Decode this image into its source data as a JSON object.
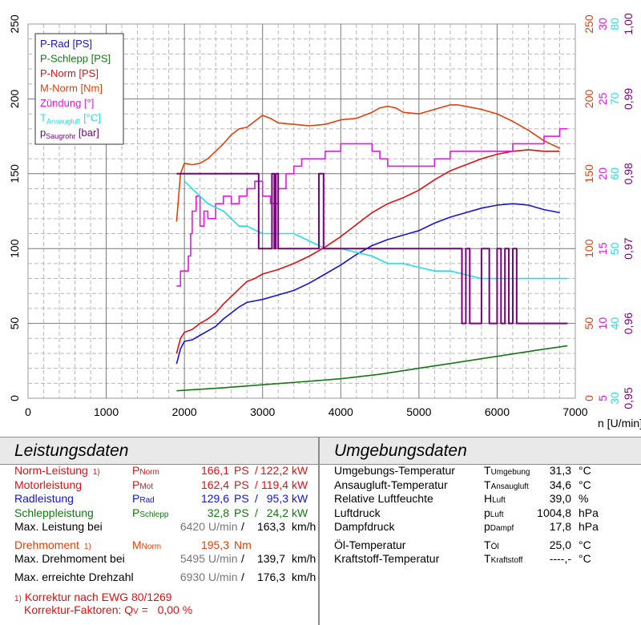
{
  "colors": {
    "p_rad": "#1414d2",
    "p_schlepp": "#137813",
    "p_norm": "#e01010",
    "m_norm": "#e0400a",
    "zuendung": "#e018e0",
    "t_ansaug": "#20e0e0",
    "p_saug": "#780078"
  },
  "chart_data": {
    "type": "line",
    "xlabel": "n [U/min]",
    "xlim": [
      0,
      7000
    ],
    "x_ticks": [
      "0",
      "1000",
      "2000",
      "3000",
      "4000",
      "5000",
      "6000",
      "7000"
    ],
    "axes": {
      "left_ps": {
        "ticks": [
          "0",
          "50",
          "100",
          "150",
          "200",
          "250"
        ],
        "ylim": [
          0,
          250
        ]
      },
      "right_nm": {
        "ticks": [
          "0",
          "50",
          "100",
          "150",
          "200",
          "250"
        ],
        "ylim": [
          0,
          250
        ]
      },
      "right_deg": {
        "ticks": [
          "5",
          "10",
          "15",
          "20",
          "25",
          "30"
        ],
        "ylim": [
          5,
          30
        ]
      },
      "right_c": {
        "ticks": [
          "30",
          "40",
          "50",
          "60",
          "70",
          "80"
        ],
        "ylim": [
          30,
          80
        ]
      },
      "right_bar": {
        "ticks": [
          "0,95",
          "0,96",
          "0,97",
          "0,98",
          "0,99",
          "1,00"
        ],
        "ylim": [
          0.95,
          1.0
        ]
      }
    },
    "legend": [
      "P-Rad [PS]",
      "P-Schlepp [PS]",
      "P-Norm [PS]",
      "M-Norm [Nm]",
      "Zündung [°]",
      "T|Ansaugluft| [°C]",
      "p|Saugrohr| [bar]"
    ],
    "series": [
      {
        "name": "P-Rad [PS]",
        "axis": "left_ps",
        "color": "p_rad",
        "points": [
          [
            1900,
            23
          ],
          [
            1950,
            33
          ],
          [
            2000,
            38
          ],
          [
            2100,
            39
          ],
          [
            2200,
            42
          ],
          [
            2300,
            45
          ],
          [
            2400,
            48
          ],
          [
            2500,
            53
          ],
          [
            2600,
            57
          ],
          [
            2700,
            61
          ],
          [
            2800,
            64
          ],
          [
            3000,
            66
          ],
          [
            3200,
            69
          ],
          [
            3400,
            72
          ],
          [
            3600,
            77
          ],
          [
            3800,
            83
          ],
          [
            4000,
            89
          ],
          [
            4200,
            96
          ],
          [
            4400,
            102
          ],
          [
            4600,
            106
          ],
          [
            4800,
            109
          ],
          [
            5000,
            112
          ],
          [
            5200,
            117
          ],
          [
            5400,
            121
          ],
          [
            5600,
            124
          ],
          [
            5800,
            127
          ],
          [
            6000,
            129
          ],
          [
            6200,
            130
          ],
          [
            6400,
            129
          ],
          [
            6600,
            126
          ],
          [
            6800,
            124
          ]
        ]
      },
      {
        "name": "P-Schlepp [PS]",
        "axis": "left_ps",
        "color": "p_schlepp",
        "points": [
          [
            1900,
            5
          ],
          [
            2500,
            7
          ],
          [
            3000,
            9
          ],
          [
            3500,
            11
          ],
          [
            4000,
            13
          ],
          [
            4500,
            16
          ],
          [
            5000,
            20
          ],
          [
            5500,
            24
          ],
          [
            6000,
            28
          ],
          [
            6500,
            32
          ],
          [
            6900,
            35
          ]
        ]
      },
      {
        "name": "P-Norm [PS]",
        "axis": "left_ps",
        "color": "p_norm",
        "points": [
          [
            1900,
            30
          ],
          [
            1950,
            40
          ],
          [
            2000,
            44
          ],
          [
            2100,
            46
          ],
          [
            2200,
            50
          ],
          [
            2300,
            53
          ],
          [
            2400,
            57
          ],
          [
            2500,
            63
          ],
          [
            2600,
            68
          ],
          [
            2700,
            73
          ],
          [
            2800,
            78
          ],
          [
            2900,
            80
          ],
          [
            3000,
            83
          ],
          [
            3200,
            86
          ],
          [
            3400,
            90
          ],
          [
            3600,
            95
          ],
          [
            3800,
            101
          ],
          [
            4000,
            108
          ],
          [
            4200,
            116
          ],
          [
            4400,
            124
          ],
          [
            4600,
            130
          ],
          [
            4800,
            134
          ],
          [
            5000,
            139
          ],
          [
            5200,
            146
          ],
          [
            5400,
            152
          ],
          [
            5600,
            156
          ],
          [
            5800,
            160
          ],
          [
            6000,
            163
          ],
          [
            6200,
            165
          ],
          [
            6400,
            166
          ],
          [
            6600,
            165
          ],
          [
            6800,
            165
          ]
        ]
      },
      {
        "name": "M-Norm [Nm]",
        "axis": "right_nm",
        "color": "m_norm",
        "points": [
          [
            1900,
            118
          ],
          [
            1950,
            150
          ],
          [
            2000,
            157
          ],
          [
            2100,
            156
          ],
          [
            2200,
            157
          ],
          [
            2300,
            160
          ],
          [
            2500,
            170
          ],
          [
            2600,
            176
          ],
          [
            2700,
            180
          ],
          [
            2800,
            181
          ],
          [
            2900,
            185
          ],
          [
            3000,
            189
          ],
          [
            3100,
            187
          ],
          [
            3200,
            184
          ],
          [
            3400,
            183
          ],
          [
            3600,
            182
          ],
          [
            3800,
            183
          ],
          [
            4000,
            186
          ],
          [
            4200,
            187
          ],
          [
            4400,
            191
          ],
          [
            4500,
            194
          ],
          [
            4600,
            195
          ],
          [
            4700,
            194
          ],
          [
            4800,
            191
          ],
          [
            5000,
            190
          ],
          [
            5200,
            193
          ],
          [
            5400,
            196
          ],
          [
            5500,
            196
          ],
          [
            5600,
            195
          ],
          [
            5800,
            193
          ],
          [
            6000,
            190
          ],
          [
            6200,
            185
          ],
          [
            6400,
            179
          ],
          [
            6600,
            172
          ],
          [
            6800,
            167
          ]
        ]
      },
      {
        "name": "Zündung [°]",
        "axis": "right_deg",
        "color": "zuendung",
        "points": [
          [
            1900,
            12.5
          ],
          [
            1950,
            13.5
          ],
          [
            2000,
            13.5
          ],
          [
            2050,
            14.5
          ],
          [
            2080,
            16
          ],
          [
            2100,
            17.5
          ],
          [
            2150,
            18.5
          ],
          [
            2200,
            16.5
          ],
          [
            2250,
            17.5
          ],
          [
            2300,
            17
          ],
          [
            2400,
            18
          ],
          [
            2500,
            18.5
          ],
          [
            2600,
            18
          ],
          [
            2700,
            18.5
          ],
          [
            2800,
            19
          ],
          [
            2900,
            19.5
          ],
          [
            3000,
            18.5
          ],
          [
            3100,
            18
          ],
          [
            3200,
            19
          ],
          [
            3300,
            20
          ],
          [
            3400,
            20.5
          ],
          [
            3500,
            21
          ],
          [
            3600,
            21
          ],
          [
            3800,
            21.5
          ],
          [
            3900,
            21.5
          ],
          [
            4000,
            22
          ],
          [
            4200,
            22
          ],
          [
            4400,
            21.5
          ],
          [
            4500,
            21
          ],
          [
            4600,
            20.5
          ],
          [
            4800,
            20.5
          ],
          [
            5000,
            20.5
          ],
          [
            5200,
            21
          ],
          [
            5400,
            21.5
          ],
          [
            5600,
            21.5
          ],
          [
            5800,
            21.5
          ],
          [
            6000,
            21.5
          ],
          [
            6200,
            22
          ],
          [
            6400,
            22
          ],
          [
            6600,
            22.5
          ],
          [
            6800,
            23
          ],
          [
            6900,
            23
          ]
        ]
      },
      {
        "name": "T|Ansaugluft| [°C]",
        "axis": "right_c",
        "color": "t_ansaug",
        "points": [
          [
            2000,
            59
          ],
          [
            2100,
            58
          ],
          [
            2200,
            57
          ],
          [
            2300,
            56
          ],
          [
            2400,
            55.5
          ],
          [
            2500,
            55
          ],
          [
            2600,
            54
          ],
          [
            2700,
            53
          ],
          [
            2800,
            53
          ],
          [
            3000,
            52
          ],
          [
            3200,
            52
          ],
          [
            3400,
            52
          ],
          [
            3600,
            51
          ],
          [
            3800,
            50
          ],
          [
            4000,
            50
          ],
          [
            4200,
            49.5
          ],
          [
            4400,
            49
          ],
          [
            4600,
            48
          ],
          [
            4800,
            48
          ],
          [
            5000,
            47.5
          ],
          [
            5200,
            47
          ],
          [
            5400,
            47
          ],
          [
            5600,
            46.5
          ],
          [
            5800,
            46
          ],
          [
            6000,
            46
          ],
          [
            6200,
            46
          ],
          [
            6400,
            46
          ],
          [
            6600,
            46
          ],
          [
            6800,
            46
          ],
          [
            6900,
            46
          ]
        ]
      },
      {
        "name": "p|Saugrohr| [bar]",
        "axis": "right_bar",
        "color": "p_saug",
        "points": [
          [
            1900,
            0.98
          ],
          [
            2500,
            0.98
          ],
          [
            2900,
            0.98
          ],
          [
            2950,
            0.97
          ],
          [
            3100,
            0.97
          ],
          [
            3120,
            0.98
          ],
          [
            3150,
            0.97
          ],
          [
            3170,
            0.98
          ],
          [
            3200,
            0.97
          ],
          [
            3700,
            0.97
          ],
          [
            3720,
            0.98
          ],
          [
            3760,
            0.98
          ],
          [
            3780,
            0.97
          ],
          [
            5500,
            0.97
          ],
          [
            5550,
            0.96
          ],
          [
            5600,
            0.97
          ],
          [
            5650,
            0.96
          ],
          [
            5700,
            0.96
          ],
          [
            5800,
            0.97
          ],
          [
            5900,
            0.96
          ],
          [
            6000,
            0.97
          ],
          [
            6050,
            0.96
          ],
          [
            6100,
            0.97
          ],
          [
            6150,
            0.96
          ],
          [
            6200,
            0.97
          ],
          [
            6250,
            0.96
          ],
          [
            6900,
            0.96
          ]
        ]
      }
    ]
  },
  "leistungsdaten": {
    "heading": "Leistungsdaten",
    "rows": [
      {
        "label": "Norm-Leistung",
        "note": "1)",
        "sym": "P",
        "sym_sub": "Norm",
        "v1": "166,1",
        "u1": "PS",
        "sep": "/",
        "v2": "122,2",
        "u2": "kW"
      },
      {
        "label": "Motorleistung",
        "note": "",
        "sym": "P",
        "sym_sub": "Mot",
        "v1": "162,4",
        "u1": "PS",
        "sep": "/",
        "v2": "119,4",
        "u2": "kW"
      },
      {
        "label": "Radleistung",
        "note": "",
        "sym": "P",
        "sym_sub": "Rad",
        "v1": "129,6",
        "u1": "PS",
        "sep": "/",
        "v2": "95,3",
        "u2": "kW"
      },
      {
        "label": "Schleppleistung",
        "note": "",
        "sym": "P",
        "sym_sub": "Schlepp",
        "v1": "32,8",
        "u1": "PS",
        "sep": "/",
        "v2": "24,2",
        "u2": "kW"
      }
    ],
    "max_leistung": {
      "label": "Max. Leistung bei",
      "v1": "6420",
      "u1": "U/min",
      "sep": "/",
      "v2": "163,3",
      "u2": "km/h"
    },
    "drehmoment": {
      "label": "Drehmoment",
      "note": "1)",
      "sym": "M",
      "sym_sub": "Norm",
      "v1": "195,3",
      "u1": "Nm"
    },
    "max_drehmoment": {
      "label": "Max. Drehmoment bei",
      "v1": "5495",
      "u1": "U/min",
      "sep": "/",
      "v2": "139,7",
      "u2": "km/h"
    },
    "max_drehzahl": {
      "label": "Max. erreichte Drehzahl",
      "v1": "6930",
      "u1": "U/min",
      "sep": "/",
      "v2": "176,3",
      "u2": "km/h"
    },
    "footnote1": "1) Korrektur nach EWG 80/1269",
    "footnote2_label": "Korrektur-Faktoren: Q",
    "footnote2_sub": "V",
    "footnote2_value": " =   0,00 %"
  },
  "umgebungsdaten": {
    "heading": "Umgebungsdaten",
    "rows": [
      {
        "label": "Umgebungs-Temperatur",
        "sym": "T",
        "sym_sub": "Umgebung",
        "value": "31,3",
        "unit": "°C"
      },
      {
        "label": "Ansaugluft-Temperatur",
        "sym": "T",
        "sym_sub": "Ansaugluft",
        "value": "34,6",
        "unit": "°C"
      },
      {
        "label": "Relative Luftfeuchte",
        "sym": "H",
        "sym_sub": "Luft",
        "value": "39,0",
        "unit": "%"
      },
      {
        "label": "Luftdruck",
        "sym": "p",
        "sym_sub": "Luft",
        "value": "1004,8",
        "unit": "hPa"
      },
      {
        "label": "Dampfdruck",
        "sym": "p",
        "sym_sub": "Dampf",
        "value": "17,8",
        "unit": "hPa"
      },
      {
        "label": "Öl-Temperatur",
        "sym": "T",
        "sym_sub": "Öl",
        "value": "25,0",
        "unit": "°C"
      },
      {
        "label": "Kraftstoff-Temperatur",
        "sym": "T",
        "sym_sub": "Kraftstoff",
        "value": "----,-",
        "unit": "°C"
      }
    ]
  }
}
